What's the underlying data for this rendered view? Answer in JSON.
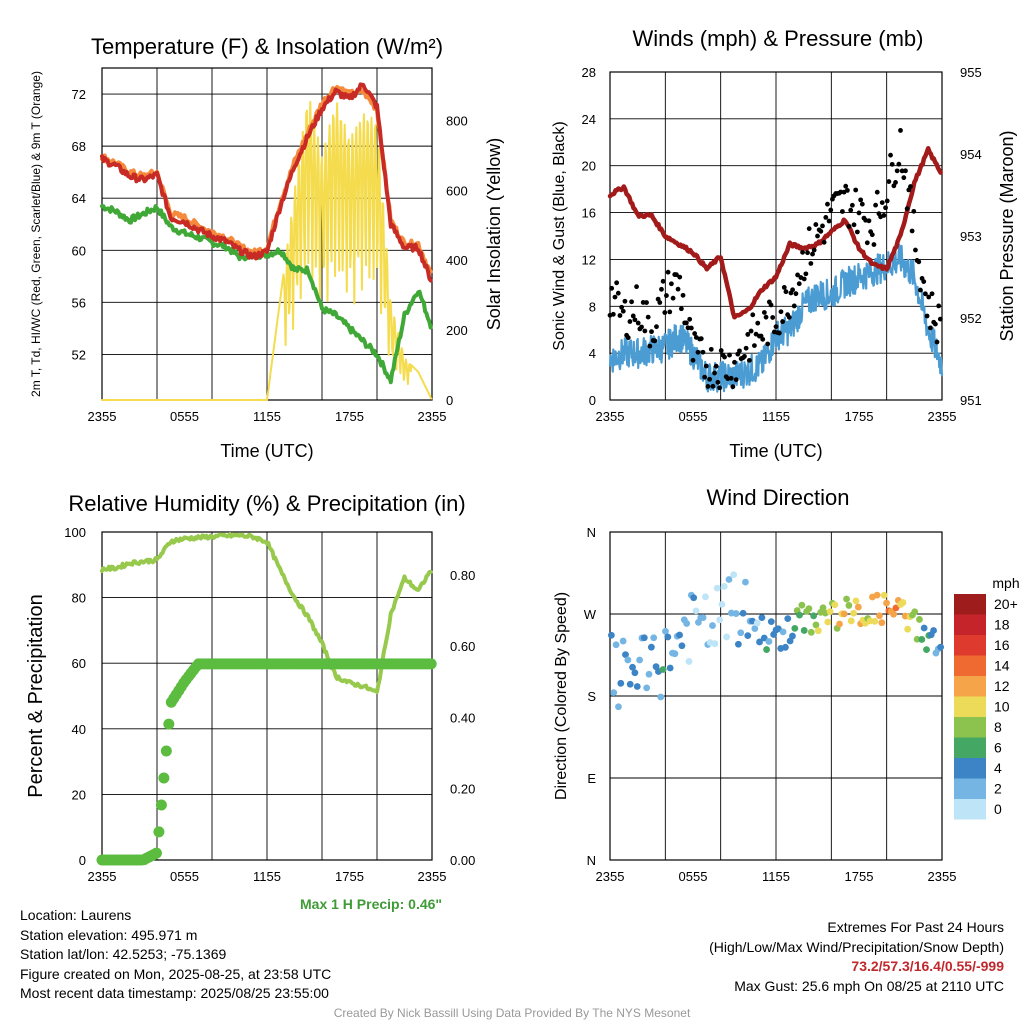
{
  "colors": {
    "red": "#c82b25",
    "green": "#3fa836",
    "orange": "#f58a3c",
    "yellow": "#f4dc4e",
    "sonic_blue": "#4b9cd3",
    "pressure_maroon": "#a31a1a",
    "gust_black": "#000000",
    "rh_green": "#97c94d",
    "precip_green": "#5bbc3f",
    "highlight_red": "#c0282d",
    "credit_gray": "#999999"
  },
  "chart_data": [
    {
      "id": "temp",
      "type": "line",
      "title": "Temperature (F) & Insolation (W/m²)",
      "xlabel": "Time (UTC)",
      "ylabel": "2m T, Td, HI/WC (Red, Green, Scarlet/Blue) & 9m T (Orange)",
      "ylabel2": "Solar Insolation (Yellow)",
      "x_ticks": [
        "2355",
        "0555",
        "1155",
        "1755",
        "2355"
      ],
      "ylim": [
        48.5,
        74
      ],
      "y_ticks": [
        52,
        56,
        60,
        64,
        68,
        72
      ],
      "ylim2": [
        0,
        950
      ],
      "y2_ticks": [
        0,
        200,
        400,
        600,
        800
      ],
      "x_hours": [
        0,
        1,
        2,
        3,
        4,
        5,
        6,
        7,
        8,
        9,
        10,
        11,
        12,
        13,
        14,
        15,
        16,
        17,
        18,
        19,
        20,
        21,
        22,
        23,
        24
      ],
      "series": [
        {
          "name": "2m T",
          "color": "red",
          "values": [
            67,
            66.5,
            65.7,
            65.4,
            65.8,
            62.5,
            62.2,
            61.6,
            61.1,
            60.7,
            60,
            59.5,
            59.9,
            63.5,
            66.5,
            68.8,
            70.9,
            72.2,
            71.6,
            72.8,
            71,
            62,
            60.2,
            60.2,
            57.5
          ]
        },
        {
          "name": "9m T",
          "color": "orange",
          "values": [
            67.2,
            66.7,
            66,
            65.7,
            66,
            62.8,
            62.5,
            61.9,
            61.4,
            61,
            60.3,
            59.8,
            60.2,
            63.8,
            66.8,
            69.1,
            71.3,
            72.6,
            72,
            72.2,
            70.8,
            62.3,
            60.5,
            60.5,
            58
          ]
        },
        {
          "name": "Td",
          "color": "green",
          "values": [
            63.4,
            63,
            62.3,
            62.8,
            63.3,
            61.8,
            61.3,
            61,
            60.6,
            60.3,
            59.5,
            59.6,
            59.7,
            60,
            58.5,
            58.5,
            55.5,
            55,
            54,
            53,
            52,
            50,
            55,
            57,
            54
          ]
        },
        {
          "name": "Solar Insolation",
          "color": "yellow",
          "axis": "right",
          "values": [
            0,
            0,
            0,
            0,
            0,
            0,
            0,
            0,
            0,
            0,
            0,
            0,
            0,
            300,
            600,
            880,
            700,
            860,
            750,
            820,
            800,
            280,
            120,
            80,
            0
          ]
        }
      ]
    },
    {
      "id": "winds",
      "type": "scatter",
      "title": "Winds (mph) & Pressure (mb)",
      "xlabel": "Time (UTC)",
      "ylabel": "Sonic Wind & Gust (Blue, Black)",
      "ylabel2": "Station Pressure (Maroon)",
      "x_ticks": [
        "2355",
        "0555",
        "1155",
        "1755",
        "2355"
      ],
      "ylim": [
        0,
        28
      ],
      "y_ticks": [
        0,
        4,
        8,
        12,
        16,
        20,
        24,
        28
      ],
      "ylim2": [
        951,
        955
      ],
      "y2_ticks": [
        951,
        952,
        953,
        954,
        955
      ],
      "x_hours": [
        0,
        1,
        2,
        3,
        4,
        5,
        6,
        7,
        8,
        9,
        10,
        11,
        12,
        13,
        14,
        15,
        16,
        17,
        18,
        19,
        20,
        21,
        22,
        23,
        24
      ],
      "series": [
        {
          "name": "Sonic Wind",
          "color": "sonic_blue",
          "values": [
            3.5,
            4,
            4,
            4.3,
            4.5,
            5.5,
            4,
            2,
            2,
            2,
            2.5,
            3,
            5.5,
            6,
            8,
            9,
            9,
            10,
            10.5,
            11,
            11.5,
            12,
            10.5,
            6,
            3
          ]
        },
        {
          "name": "Gust",
          "color": "gust_black",
          "values": [
            9,
            7,
            8,
            6,
            9,
            10,
            4,
            3,
            3,
            3,
            5,
            6,
            7,
            9,
            12,
            14,
            16,
            17,
            16,
            15,
            18,
            22,
            14,
            8,
            6
          ]
        },
        {
          "name": "Station Pressure",
          "color": "pressure_maroon",
          "axis": "right",
          "values": [
            953.5,
            953.6,
            953.25,
            953.25,
            953.0,
            952.9,
            952.8,
            952.6,
            952.75,
            952.0,
            952.1,
            952.35,
            952.5,
            952.9,
            952.85,
            952.9,
            953.05,
            953.2,
            952.85,
            952.65,
            952.6,
            953.0,
            953.65,
            954.05,
            953.75
          ]
        }
      ]
    },
    {
      "id": "rh",
      "type": "line",
      "title": "Relative Humidity (%) & Precipitation (in)",
      "xlabel": "",
      "ylabel": "Percent & Precipitation",
      "x_ticks": [
        "2355",
        "0555",
        "1155",
        "1755",
        "2355"
      ],
      "ylim": [
        0,
        100
      ],
      "y_ticks": [
        0,
        20,
        40,
        60,
        80,
        100
      ],
      "ylim2": [
        0,
        0.92
      ],
      "y2_ticks": [
        "0.00",
        "0.20",
        "0.40",
        "0.60",
        "0.80"
      ],
      "x_hours": [
        0,
        1,
        2,
        3,
        4,
        5,
        6,
        7,
        8,
        9,
        10,
        11,
        12,
        13,
        14,
        15,
        16,
        17,
        18,
        19,
        20,
        21,
        22,
        23,
        24
      ],
      "series": [
        {
          "name": "Relative Humidity",
          "color": "rh_green",
          "values": [
            88.7,
            89,
            90.5,
            91,
            91.5,
            97.2,
            98,
            98.3,
            98.6,
            98.8,
            99,
            98.5,
            97,
            88,
            80,
            74,
            66,
            56,
            54,
            53,
            51,
            75,
            86,
            82,
            89
          ]
        },
        {
          "name": "Precipitation",
          "color": "precip_green",
          "axis": "right",
          "values": [
            0,
            0,
            0,
            0,
            0.02,
            0.44,
            0.5,
            0.55,
            0.55,
            0.55,
            0.55,
            0.55,
            0.55,
            0.55,
            0.55,
            0.55,
            0.55,
            0.55,
            0.55,
            0.55,
            0.55,
            0.55,
            0.55,
            0.55,
            0.55
          ]
        }
      ]
    },
    {
      "id": "wdir",
      "type": "scatter",
      "title": "Wind Direction",
      "xlabel": "",
      "ylabel": "Direction (Colored By Speed)",
      "x_ticks": [
        "2355",
        "0555",
        "1155",
        "1755",
        "2355"
      ],
      "y_tick_labels": [
        "N",
        "E",
        "S",
        "W",
        "N"
      ],
      "legend_title": "mph",
      "legend_labels": [
        "20+",
        "18",
        "16",
        "14",
        "12",
        "10",
        "8",
        "6",
        "4",
        "2",
        "0"
      ],
      "legend_colors": [
        "#9e1c1c",
        "#c4242a",
        "#de3a2d",
        "#ef6a30",
        "#f6a44a",
        "#ecdb58",
        "#8cc34f",
        "#44a763",
        "#3c84c5",
        "#74b5e3",
        "#bde4f7"
      ]
    }
  ],
  "info": {
    "location": "Location: Laurens",
    "elevation": "Station elevation: 495.971 m",
    "latlon": "Station lat/lon: 42.5253; -75.1369",
    "created": "Figure created on Mon, 2025-08-25, at 23:58 UTC",
    "recent": "Most recent data timestamp: 2025/08/25 23:55:00",
    "extremes_title": "Extremes For Past 24 Hours",
    "extremes_sub": "(High/Low/Max Wind/Precipitation/Snow Depth)",
    "extremes_values": "73.2/57.3/16.4/0.55/-999",
    "max_gust": "Max Gust: 25.6 mph On 08/25 at 2110 UTC",
    "max_precip": "Max 1 H Precip: 0.46\"",
    "credit": "Created By Nick Bassill Using Data Provided By The NYS Mesonet"
  }
}
